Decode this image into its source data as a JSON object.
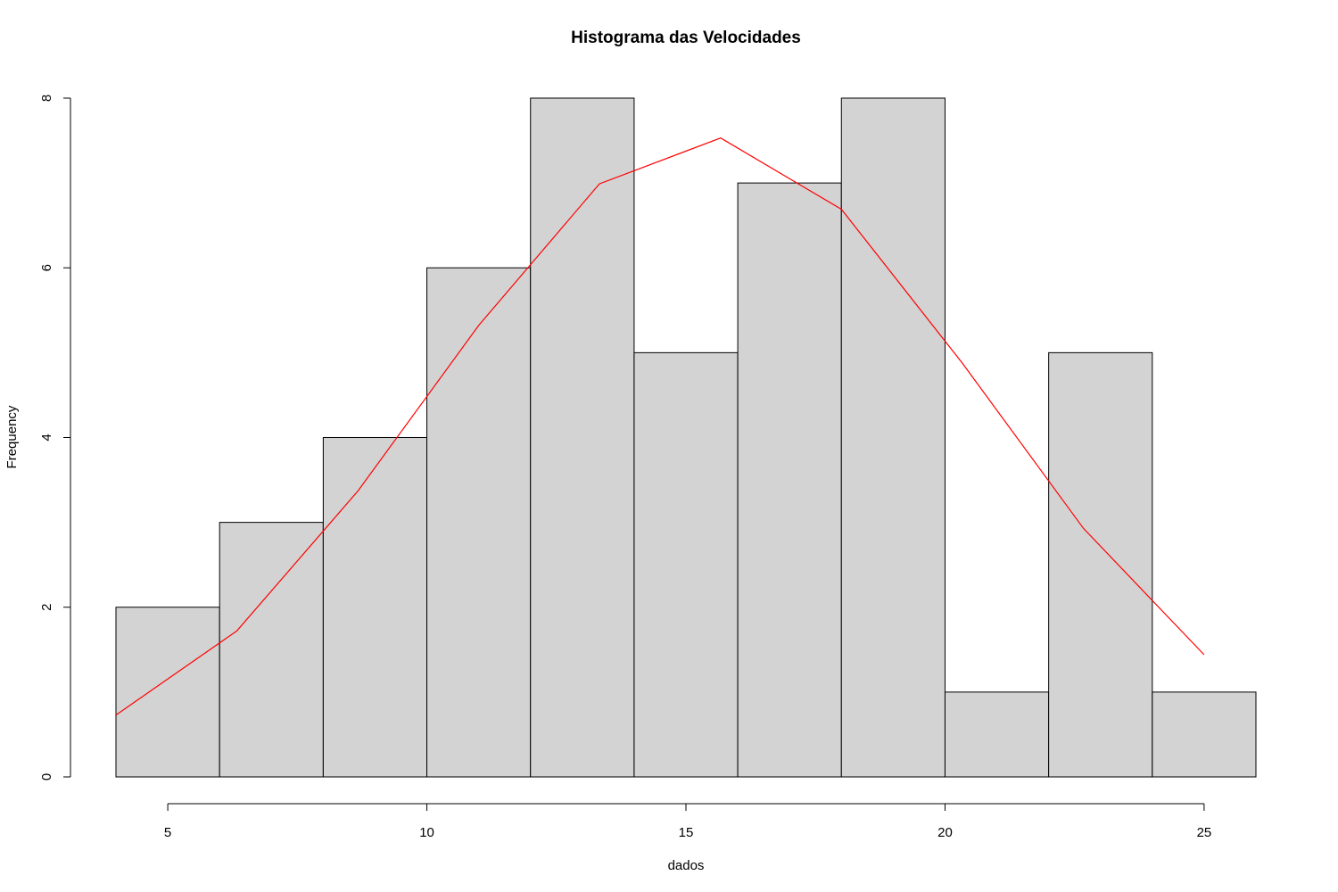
{
  "chart_data": {
    "type": "bar",
    "title": "Histograma das Velocidades",
    "xlabel": "dados",
    "ylabel": "Frequency",
    "bins": [
      {
        "from": 4,
        "to": 6,
        "count": 2
      },
      {
        "from": 6,
        "to": 8,
        "count": 3
      },
      {
        "from": 8,
        "to": 10,
        "count": 4
      },
      {
        "from": 10,
        "to": 12,
        "count": 6
      },
      {
        "from": 12,
        "to": 14,
        "count": 8
      },
      {
        "from": 14,
        "to": 16,
        "count": 5
      },
      {
        "from": 16,
        "to": 18,
        "count": 7
      },
      {
        "from": 18,
        "to": 20,
        "count": 8
      },
      {
        "from": 20,
        "to": 22,
        "count": 1
      },
      {
        "from": 22,
        "to": 24,
        "count": 5
      },
      {
        "from": 24,
        "to": 26,
        "count": 1
      }
    ],
    "curve": {
      "color": "#ff0000",
      "points": [
        {
          "x": 4.0,
          "y": 0.73
        },
        {
          "x": 6.33,
          "y": 1.72
        },
        {
          "x": 8.67,
          "y": 3.37
        },
        {
          "x": 11.0,
          "y": 5.32
        },
        {
          "x": 13.33,
          "y": 6.99
        },
        {
          "x": 15.67,
          "y": 7.53
        },
        {
          "x": 18.0,
          "y": 6.69
        },
        {
          "x": 20.33,
          "y": 4.88
        },
        {
          "x": 22.67,
          "y": 2.93
        },
        {
          "x": 25.0,
          "y": 1.44
        }
      ]
    },
    "xticks": [
      5,
      10,
      15,
      20,
      25
    ],
    "yticks": [
      0,
      2,
      4,
      6,
      8
    ],
    "xlim": [
      4,
      26
    ],
    "ylim": [
      0,
      8
    ],
    "bar_fill": "#d3d3d3",
    "grid": false
  }
}
